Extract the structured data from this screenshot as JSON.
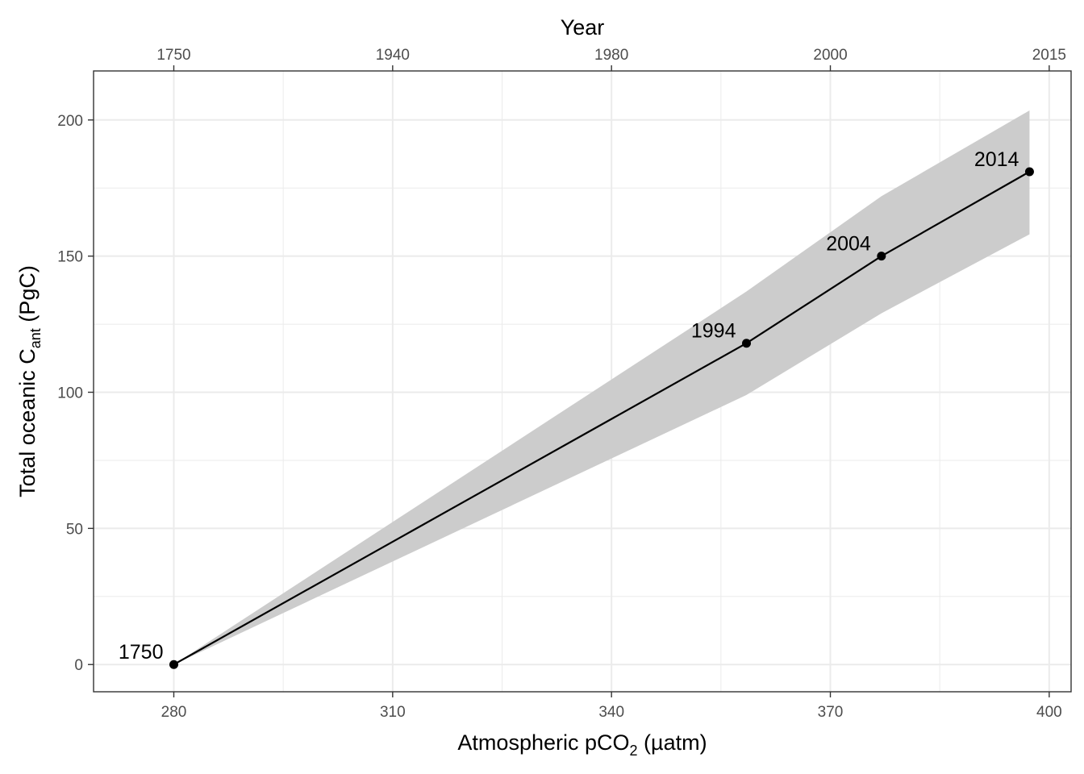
{
  "chart_data": {
    "type": "line",
    "xlabel": {
      "prefix": "Atmospheric pCO",
      "sub": "2",
      "suffix": " (µatm)"
    },
    "ylabel": {
      "prefix": "Total oceanic C",
      "sub": "ant",
      "suffix": " (PgC)"
    },
    "x2label": "Year",
    "xlim": [
      269,
      403
    ],
    "ylim": [
      -10,
      218
    ],
    "grid": true,
    "x_ticks": [
      280,
      310,
      340,
      370,
      400
    ],
    "y_ticks": [
      0,
      50,
      100,
      150,
      200
    ],
    "x2_ticks": [
      {
        "x": 280,
        "label": "1750"
      },
      {
        "x": 310,
        "label": "1940"
      },
      {
        "x": 340,
        "label": "1980"
      },
      {
        "x": 370,
        "label": "2000"
      },
      {
        "x": 400,
        "label": "2015"
      }
    ],
    "series": [
      {
        "x": [
          280,
          358.5,
          377,
          397.3
        ],
        "y": [
          0,
          118,
          150,
          181
        ],
        "labels": [
          "1750",
          "1994",
          "2004",
          "2014"
        ],
        "lower": [
          0,
          99,
          129,
          158
        ],
        "upper": [
          0,
          137,
          172,
          203.5
        ]
      }
    ],
    "colors": {
      "line": "#000000",
      "band": "#cccccc",
      "grid": "#ebebeb",
      "frame": "#333333"
    }
  }
}
